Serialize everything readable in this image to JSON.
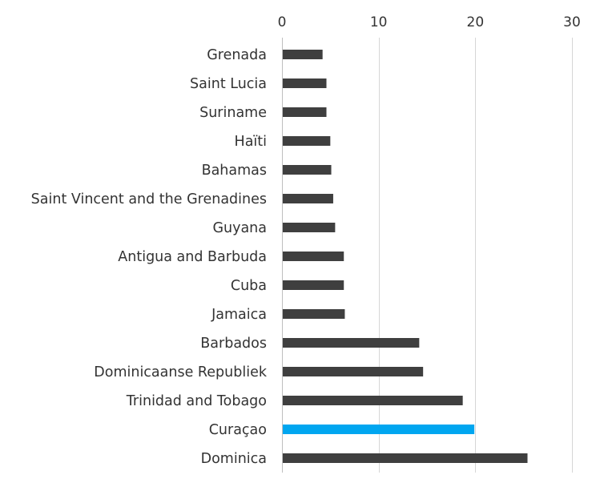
{
  "chart_data": {
    "type": "bar",
    "orientation": "horizontal",
    "categories": [
      "Grenada",
      "Saint Lucia",
      "Suriname",
      "Haïti",
      "Bahamas",
      "Saint Vincent and the Grenadines",
      "Guyana",
      "Antigua and Barbuda",
      "Cuba",
      "Jamaica",
      "Barbados",
      "Dominicaanse Republiek",
      "Trinidad and Tobago",
      "Curaçao",
      "Dominica"
    ],
    "values": [
      4.2,
      4.6,
      4.6,
      5.0,
      5.1,
      5.3,
      5.5,
      6.4,
      6.4,
      6.5,
      14.2,
      14.6,
      18.7,
      19.9,
      25.4
    ],
    "highlight_category": "Curaçao",
    "xlim": [
      0,
      30
    ],
    "x_ticks": [
      0,
      10,
      20,
      30
    ],
    "x_axis_position": "top",
    "grid": true,
    "title": "",
    "xlabel": "",
    "ylabel": "",
    "colors": {
      "bar": "#3f3f3f",
      "highlight": "#00a6f0",
      "grid": "#d6d6d6"
    }
  }
}
